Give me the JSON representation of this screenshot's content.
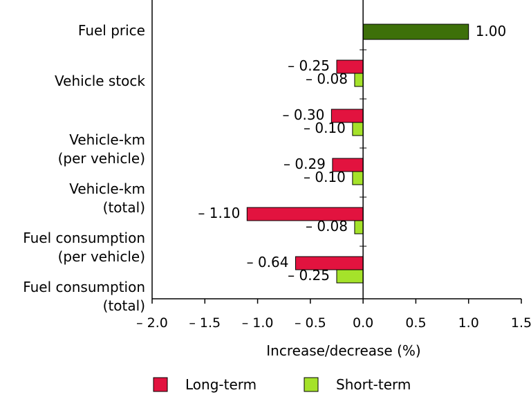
{
  "chart_data": {
    "type": "bar",
    "orientation": "horizontal",
    "categories": [
      [
        "Fuel price"
      ],
      [
        "Vehicle stock"
      ],
      [
        "Vehicle-km",
        "(per vehicle)"
      ],
      [
        "Vehicle-km",
        "(total)"
      ],
      [
        "Fuel consumption",
        "(per vehicle)"
      ],
      [
        "Fuel consumption",
        "(total)"
      ]
    ],
    "fuel_price": {
      "value": 1.0,
      "label": "1.00",
      "color": "#3d7009"
    },
    "series": [
      {
        "name": "Long-term",
        "color": "#e2133f",
        "values": [
          null,
          -0.25,
          -0.3,
          -0.29,
          -1.1,
          -0.64
        ],
        "labels": [
          "",
          "– 0.25",
          "– 0.30",
          "– 0.29",
          "– 1.10",
          "– 0.64"
        ]
      },
      {
        "name": "Short-term",
        "color": "#a5e22a",
        "values": [
          null,
          -0.08,
          -0.1,
          -0.1,
          -0.08,
          -0.25
        ],
        "labels": [
          "",
          "– 0.08",
          "– 0.10",
          "– 0.10",
          "– 0.08",
          "– 0.25"
        ]
      }
    ],
    "xlabel": "Increase/decrease (%)",
    "xlim": [
      -2.0,
      1.5
    ],
    "xticks": [
      -2.0,
      -1.5,
      -1.0,
      -0.5,
      0.0,
      0.5,
      1.0,
      1.5
    ],
    "xtick_labels": [
      "– 2.0",
      "– 1.5",
      "– 1.0",
      "– 0.5",
      "0.0",
      "0.5",
      "1.0",
      "1.5"
    ],
    "grid": false,
    "legend_position": "bottom"
  }
}
